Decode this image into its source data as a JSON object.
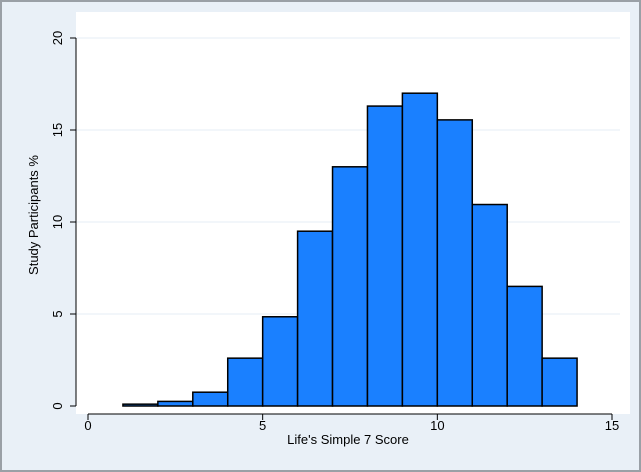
{
  "chart_data": {
    "type": "bar",
    "title": "",
    "xlabel": "Life's Simple 7 Score",
    "ylabel": "Study Participants %",
    "xlim": [
      -1,
      15.5
    ],
    "ylim": [
      0,
      20
    ],
    "xticks": [
      0,
      5,
      10,
      15
    ],
    "yticks": [
      0,
      5,
      10,
      15,
      20
    ],
    "bin_width": 1,
    "bins": [
      {
        "start": 1,
        "end": 2,
        "value": 0.1
      },
      {
        "start": 2,
        "end": 3,
        "value": 0.25
      },
      {
        "start": 3,
        "end": 4,
        "value": 0.75
      },
      {
        "start": 4,
        "end": 5,
        "value": 2.6
      },
      {
        "start": 5,
        "end": 6,
        "value": 4.85
      },
      {
        "start": 6,
        "end": 7,
        "value": 9.5
      },
      {
        "start": 7,
        "end": 8,
        "value": 13.0
      },
      {
        "start": 8,
        "end": 9,
        "value": 16.3
      },
      {
        "start": 9,
        "end": 10,
        "value": 17.0
      },
      {
        "start": 10,
        "end": 11,
        "value": 15.55
      },
      {
        "start": 11,
        "end": 12,
        "value": 10.95
      },
      {
        "start": 12,
        "end": 13,
        "value": 6.5
      },
      {
        "start": 13,
        "end": 14,
        "value": 2.6
      }
    ],
    "grid": true,
    "legend": "none",
    "colors": {
      "bar_fill": "#1a80ff",
      "bar_stroke": "#000000",
      "outer_background": "#e9f0f7",
      "outer_border": "#9aa0a6",
      "plot_background": "#ffffff",
      "gridline": "#e6eef5"
    }
  }
}
